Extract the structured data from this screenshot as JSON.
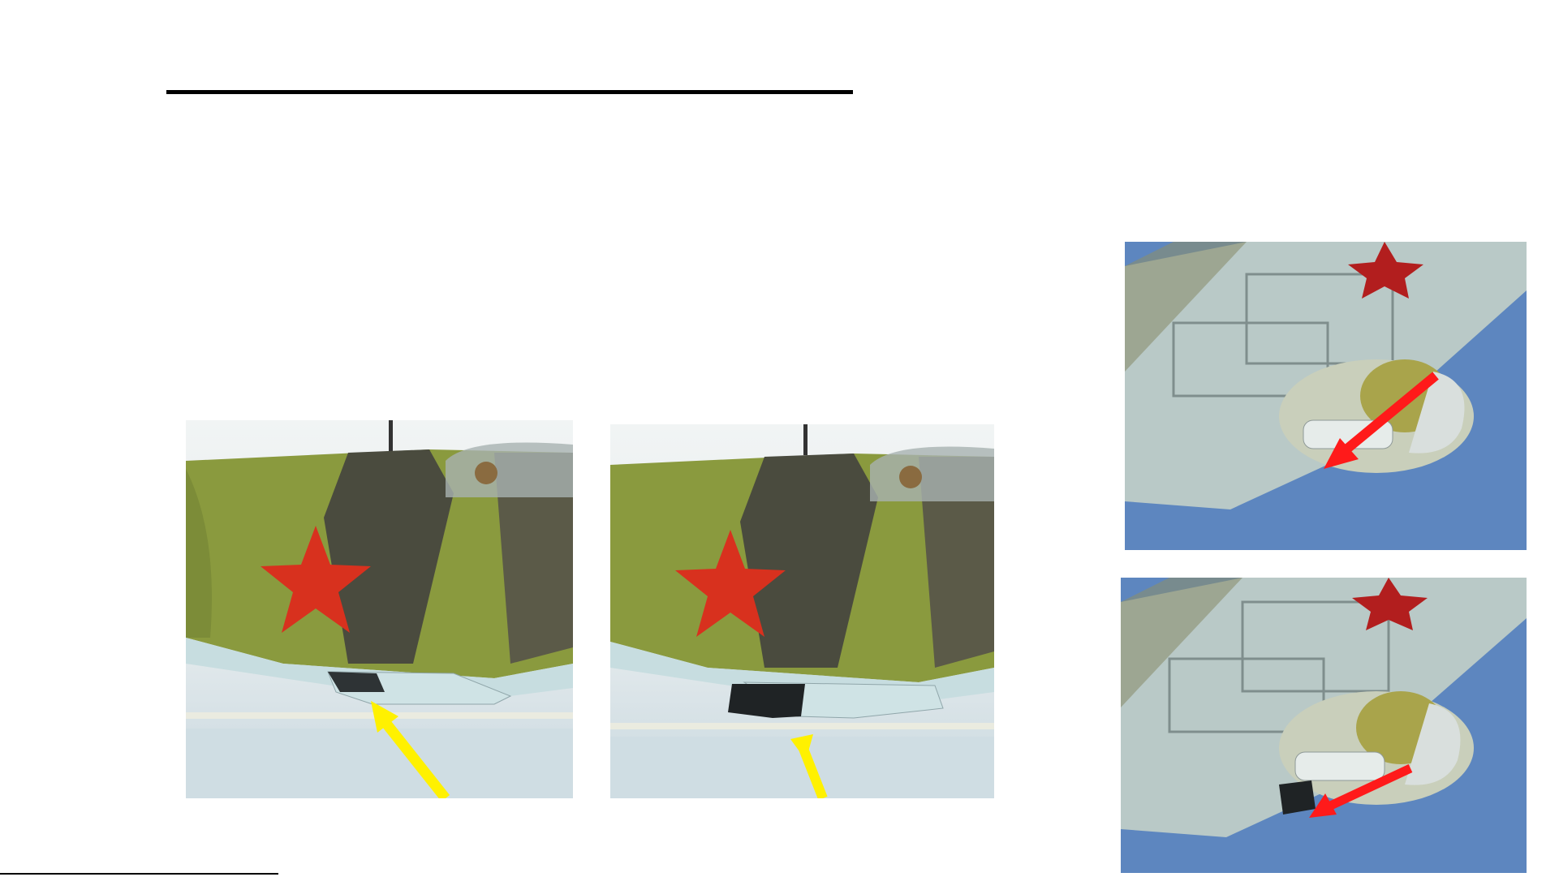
{
  "slide": {
    "title": "",
    "body_text": ""
  },
  "photos": [
    {
      "id": "side-closed",
      "arrow_color": "#fff100",
      "flap_state": 0.1
    },
    {
      "id": "side-open",
      "arrow_color": "#fff100",
      "flap_state": 1.0
    },
    {
      "id": "under-closed",
      "arrow_color": "#ff1a1a",
      "flap_state": 0.1
    },
    {
      "id": "under-open",
      "arrow_color": "#ff1a1a",
      "flap_state": 1.0
    }
  ],
  "colors": {
    "camo_green": "#8a9a3e",
    "camo_dark": "#4a4b3e",
    "star_red": "#d8311e",
    "belly_blue": "#c7dde0",
    "sky_blue": "#5d86bf",
    "sea": "#dde6ea"
  }
}
